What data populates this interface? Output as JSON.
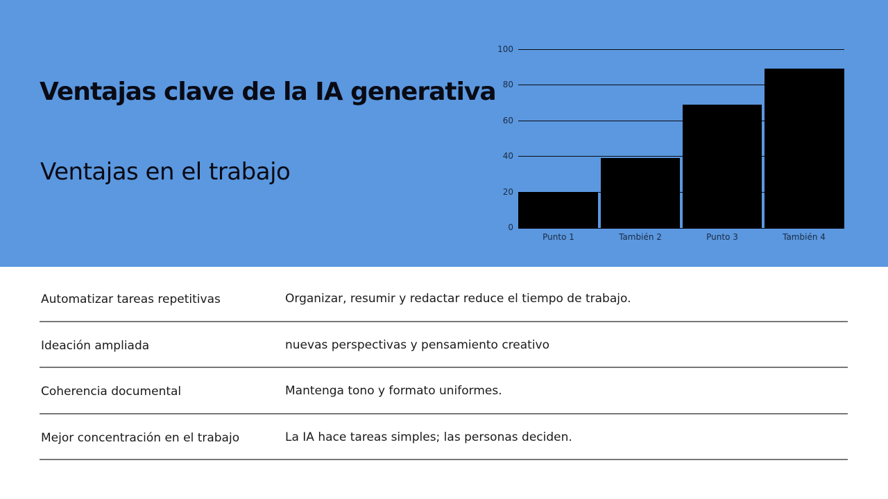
{
  "slide": {
    "title": "Ventajas clave de la IA generativa",
    "subtitle": "Ventajas en el trabajo",
    "background_color": "#5b98df"
  },
  "table": {
    "rows": [
      {
        "label": "Automatizar tareas repetitivas",
        "description": "Organizar, resumir y redactar reduce el tiempo de trabajo."
      },
      {
        "label": "Ideación ampliada",
        "description": "nuevas perspectivas y pensamiento creativo"
      },
      {
        "label": "Coherencia documental",
        "description": "Mantenga tono y formato uniformes."
      },
      {
        "label": "Mejor concentración en el trabajo",
        "description": "La IA hace tareas simples; las personas deciden."
      }
    ]
  },
  "chart_data": {
    "type": "bar",
    "title": "",
    "xlabel": "",
    "ylabel": "",
    "categories": [
      "Punto 1",
      "También 2",
      "Punto 3",
      "También 4"
    ],
    "values": [
      20,
      39,
      69,
      89
    ],
    "ylim": [
      0,
      100
    ],
    "yticks": [
      "0",
      "20",
      "40",
      "60",
      "80",
      "100"
    ],
    "grid": true,
    "legend": null,
    "bar_color": "#000000"
  }
}
